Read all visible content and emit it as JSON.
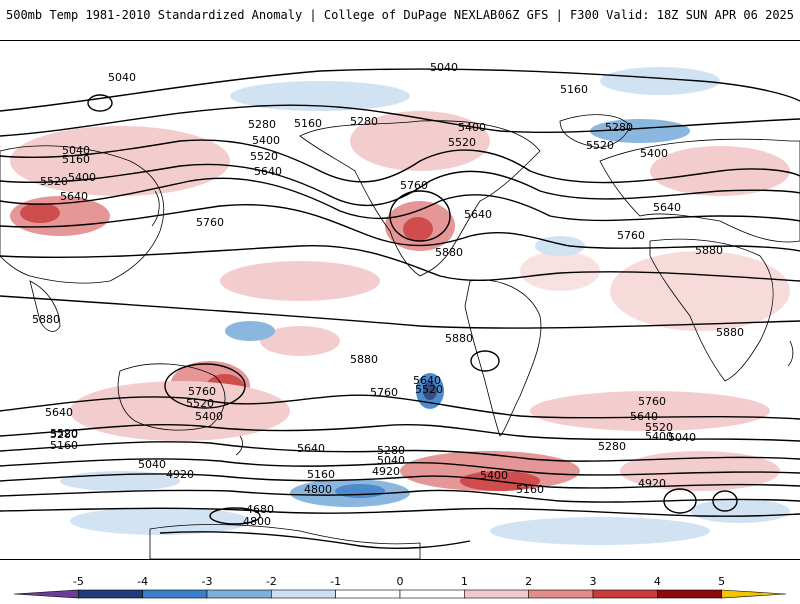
{
  "header": {
    "left_title": "500mb Temp 1981-2010 Standardized Anomaly | College of DuPage NEXLAB",
    "right_title": "06Z GFS | F300 Valid: 18Z SUN APR 06 2025"
  },
  "contour_labels": [
    {
      "text": "5040",
      "region": "north-pacific-west"
    },
    {
      "text": "5040",
      "region": "north-pole-top"
    },
    {
      "text": "5160",
      "region": "north-atlantic-top"
    },
    {
      "text": "5280",
      "region": "alaska"
    },
    {
      "text": "5160",
      "region": "bering"
    },
    {
      "text": "5280",
      "region": "canada-west"
    },
    {
      "text": "5400",
      "region": "hudson"
    },
    {
      "text": "5520",
      "region": "quebec"
    },
    {
      "text": "5280",
      "region": "greenland-east"
    },
    {
      "text": "5520",
      "region": "atlantic-north"
    },
    {
      "text": "5400",
      "region": "scandinavia"
    },
    {
      "text": "5400",
      "region": "gulf-alaska"
    },
    {
      "text": "5520",
      "region": "gulf-alaska-south"
    },
    {
      "text": "5640",
      "region": "pacific-ne"
    },
    {
      "text": "5040",
      "region": "siberia"
    },
    {
      "text": "5160",
      "region": "kamchatka"
    },
    {
      "text": "5520",
      "region": "japan-north"
    },
    {
      "text": "5400",
      "region": "japan"
    },
    {
      "text": "5640",
      "region": "china-east"
    },
    {
      "text": "5760",
      "region": "pacific-west"
    },
    {
      "text": "5760",
      "region": "us-southwest"
    },
    {
      "text": "5640",
      "region": "us-east"
    },
    {
      "text": "5880",
      "region": "mexico"
    },
    {
      "text": "5640",
      "region": "europe"
    },
    {
      "text": "5760",
      "region": "atlantic-central"
    },
    {
      "text": "5880",
      "region": "sahara"
    },
    {
      "text": "5880",
      "region": "indian-ocean"
    },
    {
      "text": "5880",
      "region": "africa-south"
    },
    {
      "text": "5880",
      "region": "pacific-south-central"
    },
    {
      "text": "5880",
      "region": "south-america-north"
    },
    {
      "text": "5760",
      "region": "australia-east"
    },
    {
      "text": "5520",
      "region": "australia-east-2"
    },
    {
      "text": "5400",
      "region": "tasman"
    },
    {
      "text": "5640",
      "region": "indian-south"
    },
    {
      "text": "5520",
      "region": "indian-south-2"
    },
    {
      "text": "5280",
      "region": "indian-south-3"
    },
    {
      "text": "5160",
      "region": "indian-south-4"
    },
    {
      "text": "5040",
      "region": "indian-south-5"
    },
    {
      "text": "4920",
      "region": "antarctic-indian"
    },
    {
      "text": "5640",
      "region": "pacific-south"
    },
    {
      "text": "5760",
      "region": "pacific-south-east"
    },
    {
      "text": "5640",
      "region": "chile-west"
    },
    {
      "text": "5520",
      "region": "chile-west-2"
    },
    {
      "text": "5280",
      "region": "pacific-south-2"
    },
    {
      "text": "5040",
      "region": "pacific-south-3"
    },
    {
      "text": "4920",
      "region": "pacific-south-4"
    },
    {
      "text": "5160",
      "region": "pacific-south-5"
    },
    {
      "text": "4800",
      "region": "antarctic-pacific"
    },
    {
      "text": "4680",
      "region": "antarctic-ross"
    },
    {
      "text": "4800",
      "region": "antarctic-ross-2"
    },
    {
      "text": "5400",
      "region": "drake"
    },
    {
      "text": "5160",
      "region": "drake-2"
    },
    {
      "text": "5760",
      "region": "atlantic-south"
    },
    {
      "text": "5640",
      "region": "atlantic-south-2"
    },
    {
      "text": "5520",
      "region": "atlantic-south-3"
    },
    {
      "text": "5400",
      "region": "atlantic-south-4"
    },
    {
      "text": "5280",
      "region": "atlantic-south-5"
    },
    {
      "text": "5040",
      "region": "atlantic-south-6"
    },
    {
      "text": "4920",
      "region": "antarctic-atlantic"
    }
  ],
  "colorbar": {
    "ticks": [
      "-5",
      "-4",
      "-3",
      "-2",
      "-1",
      "0",
      "1",
      "2",
      "3",
      "4",
      "5"
    ],
    "colors": [
      "#6a3d9a",
      "#1f3d7a",
      "#3a7fc8",
      "#7fb0dc",
      "#cde0f2",
      "#ffffff",
      "#ffffff",
      "#f2c8c8",
      "#e38b8b",
      "#cc3a3a",
      "#8b0a0a",
      "#f5c400"
    ]
  }
}
